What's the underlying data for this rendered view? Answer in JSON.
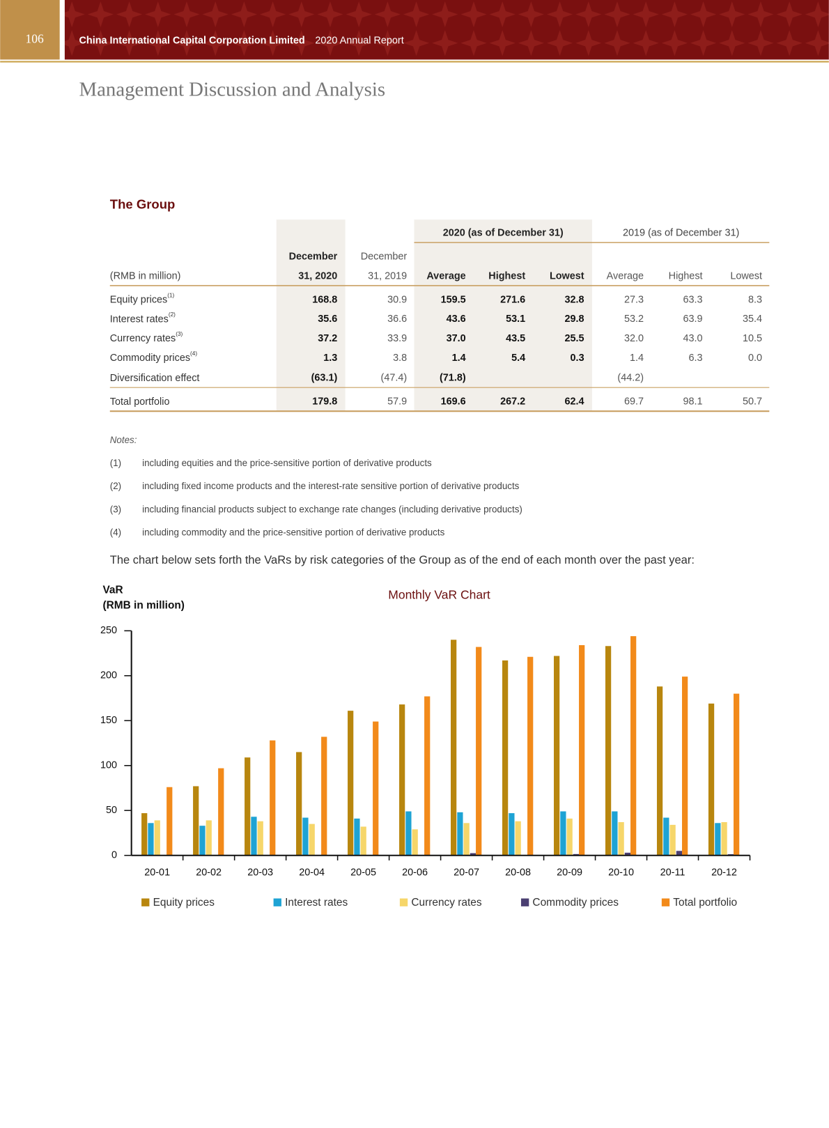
{
  "header": {
    "page_number": "106",
    "company": "China International Capital Corporation Limited",
    "report": "2020 Annual Report"
  },
  "section_title": "Management Discussion and Analysis",
  "table": {
    "title": "The Group",
    "group_headers": [
      "2020 (as of December 31)",
      "2019 (as of December 31)"
    ],
    "columns": [
      [
        "(RMB in million)"
      ],
      [
        "December",
        "31, 2020"
      ],
      [
        "December",
        "31, 2019"
      ],
      [
        "Average"
      ],
      [
        "Highest"
      ],
      [
        "Lowest"
      ],
      [
        "Average"
      ],
      [
        "Highest"
      ],
      [
        "Lowest"
      ]
    ],
    "rows": [
      {
        "label": "Equity prices",
        "note": "(1)",
        "cells": [
          "168.8",
          "30.9",
          "159.5",
          "271.6",
          "32.8",
          "27.3",
          "63.3",
          "8.3"
        ]
      },
      {
        "label": "Interest rates",
        "note": "(2)",
        "cells": [
          "35.6",
          "36.6",
          "43.6",
          "53.1",
          "29.8",
          "53.2",
          "63.9",
          "35.4"
        ]
      },
      {
        "label": "Currency rates",
        "note": "(3)",
        "cells": [
          "37.2",
          "33.9",
          "37.0",
          "43.5",
          "25.5",
          "32.0",
          "43.0",
          "10.5"
        ]
      },
      {
        "label": "Commodity prices",
        "note": "(4)",
        "cells": [
          "1.3",
          "3.8",
          "1.4",
          "5.4",
          "0.3",
          "1.4",
          "6.3",
          "0.0"
        ]
      },
      {
        "label": "Diversification effect",
        "cells": [
          "(63.1)",
          "(47.4)",
          "(71.8)",
          null,
          null,
          "(44.2)",
          null,
          null
        ]
      },
      {
        "label": "Total portfolio",
        "cells": [
          "179.8",
          "57.9",
          "169.6",
          "267.2",
          "62.4",
          "69.7",
          "98.1",
          "50.7"
        ]
      }
    ]
  },
  "notes": {
    "label": "Notes:",
    "items": [
      {
        "number": "(1)",
        "text": "including equities and the price-sensitive portion of derivative products"
      },
      {
        "number": "(2)",
        "text": "including fixed income products and the interest-rate sensitive portion of derivative products"
      },
      {
        "number": "(3)",
        "text": "including financial products subject to exchange rate changes (including derivative products)"
      },
      {
        "number": "(4)",
        "text": "including commodity and the price-sensitive portion of derivative products"
      }
    ]
  },
  "paragraph": "The chart below sets forth the VaRs by risk categories of the Group as of the end of each month over the past year:",
  "chart_data": {
    "type": "bar",
    "title": "Monthly VaR Chart",
    "y_label": [
      "VaR",
      "(RMB in million)"
    ],
    "categories": [
      "20-01",
      "20-02",
      "20-03",
      "20-04",
      "20-05",
      "20-06",
      "20-07",
      "20-08",
      "20-09",
      "20-10",
      "20-11",
      "20-12"
    ],
    "series": [
      {
        "name": "Equity prices",
        "color": "#b8860e",
        "values": [
          47,
          77,
          109,
          115,
          161,
          168,
          240,
          217,
          222,
          233,
          188,
          169
        ]
      },
      {
        "name": "Interest rates",
        "color": "#1ea3d4",
        "values": [
          36,
          33,
          43,
          42,
          41,
          49,
          48,
          47,
          49,
          49,
          42,
          36
        ]
      },
      {
        "name": "Currency rates",
        "color": "#f6d66a",
        "values": [
          39,
          39,
          38,
          35,
          32,
          29,
          36,
          38,
          41,
          37,
          34,
          37
        ]
      },
      {
        "name": "Commodity prices",
        "color": "#4b3f72",
        "values": [
          0.5,
          0.5,
          0.5,
          0.5,
          0.5,
          0.5,
          2.5,
          0.5,
          1.5,
          3,
          5,
          1.3
        ]
      },
      {
        "name": "Total portfolio",
        "color": "#f28a1a",
        "values": [
          76,
          97,
          128,
          132,
          149,
          177,
          232,
          221,
          234,
          244,
          199,
          180
        ]
      }
    ],
    "ylim": [
      0,
      250
    ],
    "yticks": [
      0,
      50,
      100,
      150,
      200,
      250
    ],
    "legend": "bottom"
  }
}
